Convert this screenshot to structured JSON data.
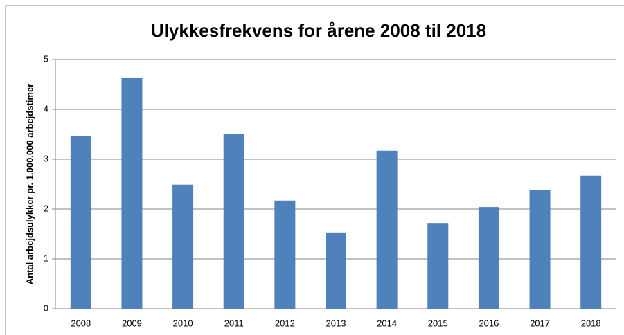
{
  "chart_data": {
    "type": "bar",
    "title": "Ulykkesfrekvens for årene 2008 til 2018",
    "ylabel": "Antal arbejdsulykker pr. 1.000.000 arbejdstimer",
    "categories": [
      "2008",
      "2009",
      "2010",
      "2011",
      "2012",
      "2013",
      "2014",
      "2015",
      "2016",
      "2017",
      "2018"
    ],
    "values": [
      3.47,
      4.64,
      2.49,
      3.5,
      2.17,
      1.53,
      3.17,
      1.72,
      2.04,
      2.38,
      2.67
    ],
    "color": "#4f81bd",
    "ylim": [
      0,
      5
    ],
    "yticks": [
      0,
      1,
      2,
      3,
      4,
      5
    ],
    "grid": true
  }
}
